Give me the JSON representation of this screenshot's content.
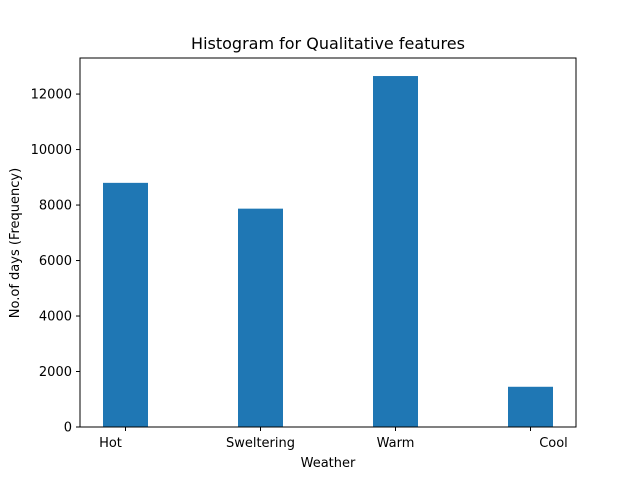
{
  "chart_data": {
    "type": "bar",
    "title": "Histogram for Qualitative features",
    "xlabel": "Weather",
    "ylabel": "No.of days (Frequency)",
    "categories": [
      "Hot",
      "Sweltering",
      "Warm",
      "Cool"
    ],
    "values": [
      8800,
      7870,
      12650,
      1450
    ],
    "ylim": [
      0,
      13300
    ],
    "yticks": [
      "0",
      "2000",
      "4000",
      "6000",
      "8000",
      "10000",
      "12000"
    ],
    "bar_color": "#1f77b4",
    "grid": false,
    "legend": "none"
  }
}
